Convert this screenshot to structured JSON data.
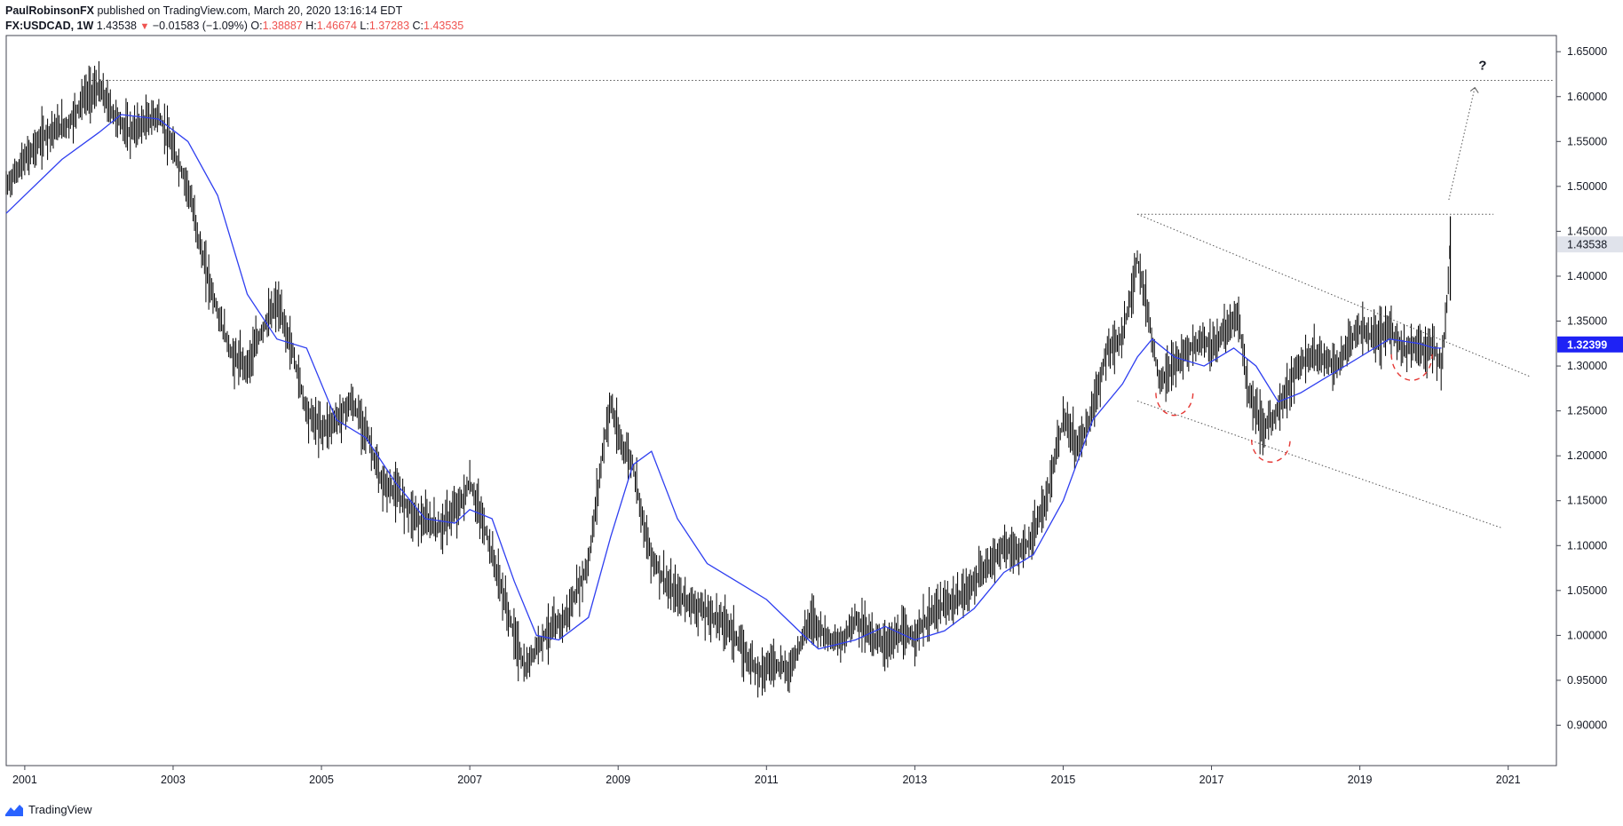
{
  "header": {
    "author": "PaulRobinsonFX",
    "published_text": "published on TradingView.com, March 20, 2020 13:16:14 EDT",
    "symbol": "FX:USDCAD, 1W",
    "last": "1.43538",
    "change_arrow": "▼",
    "change": "−0.01583 (−1.09%)",
    "o_label": "O:",
    "o_value": "1.38887",
    "h_label": "H:",
    "h_value": "1.46674",
    "l_label": "L:",
    "l_value": "1.37283",
    "c_label": "C:",
    "c_value": "1.43535"
  },
  "footer": {
    "brand": "TradingView",
    "logo_icon": "tradingview-logo-icon"
  },
  "colors": {
    "up": "#000000",
    "ma": "#2f3ff0",
    "last_badge": "#e0e3eb",
    "ma_badge": "#1e22f5",
    "red": "#e53935",
    "dotted": "#555555"
  },
  "chart_data": {
    "type": "line",
    "title": "",
    "xlabel": "",
    "ylabel": "",
    "x_ticks": [
      "2001",
      "2003",
      "2005",
      "2007",
      "2009",
      "2011",
      "2013",
      "2015",
      "2017",
      "2019",
      "2021"
    ],
    "y_ticks": [
      "0.90000",
      "0.95000",
      "1.00000",
      "1.05000",
      "1.10000",
      "1.15000",
      "1.20000",
      "1.25000",
      "1.30000",
      "1.35000",
      "1.40000",
      "1.45000",
      "1.50000",
      "1.55000",
      "1.60000",
      "1.65000"
    ],
    "xlim": [
      2000.75,
      2021.65
    ],
    "ylim": [
      0.855,
      1.668
    ],
    "grid": false,
    "price_badge": {
      "value": 1.43538,
      "label": "1.43538"
    },
    "ma_badge": {
      "value": 1.32399,
      "label": "1.32399"
    },
    "annotation_text": "?",
    "series": [
      {
        "kind": "price",
        "x": [
          2000.75,
          2001.0,
          2001.3,
          2001.6,
          2001.8,
          2002.0,
          2002.2,
          2002.4,
          2002.6,
          2002.8,
          2003.0,
          2003.2,
          2003.4,
          2003.6,
          2003.8,
          2004.0,
          2004.2,
          2004.4,
          2004.6,
          2004.8,
          2005.0,
          2005.2,
          2005.4,
          2005.6,
          2005.8,
          2006.0,
          2006.3,
          2006.6,
          2006.9,
          2007.0,
          2007.2,
          2007.4,
          2007.6,
          2007.75,
          2007.85,
          2008.0,
          2008.3,
          2008.6,
          2008.8,
          2008.9,
          2009.0,
          2009.2,
          2009.4,
          2009.5,
          2009.7,
          2009.9,
          2010.1,
          2010.3,
          2010.5,
          2010.7,
          2010.9,
          2011.1,
          2011.3,
          2011.5,
          2011.6,
          2011.8,
          2012.0,
          2012.2,
          2012.4,
          2012.6,
          2012.8,
          2013.0,
          2013.3,
          2013.6,
          2013.9,
          2014.2,
          2014.4,
          2014.6,
          2014.8,
          2015.0,
          2015.2,
          2015.4,
          2015.6,
          2015.8,
          2016.0,
          2016.1,
          2016.3,
          2016.5,
          2016.7,
          2016.9,
          2017.0,
          2017.2,
          2017.35,
          2017.5,
          2017.7,
          2017.9,
          2018.1,
          2018.3,
          2018.5,
          2018.7,
          2018.9,
          2019.0,
          2019.2,
          2019.4,
          2019.6,
          2019.8,
          2020.0,
          2020.1,
          2020.17,
          2020.22
        ],
        "y": [
          1.5,
          1.53,
          1.56,
          1.57,
          1.6,
          1.61,
          1.58,
          1.56,
          1.57,
          1.58,
          1.54,
          1.5,
          1.42,
          1.36,
          1.31,
          1.3,
          1.34,
          1.37,
          1.32,
          1.25,
          1.23,
          1.24,
          1.26,
          1.23,
          1.17,
          1.16,
          1.13,
          1.12,
          1.15,
          1.17,
          1.12,
          1.06,
          1.0,
          0.96,
          0.98,
          1.0,
          1.02,
          1.08,
          1.21,
          1.26,
          1.22,
          1.19,
          1.1,
          1.08,
          1.05,
          1.04,
          1.03,
          1.02,
          1.01,
          0.98,
          0.96,
          0.97,
          0.96,
          1.0,
          1.02,
          1.0,
          0.99,
          1.02,
          1.0,
          0.99,
          1.0,
          1.0,
          1.03,
          1.04,
          1.07,
          1.1,
          1.09,
          1.11,
          1.16,
          1.24,
          1.21,
          1.25,
          1.32,
          1.33,
          1.42,
          1.38,
          1.28,
          1.3,
          1.32,
          1.33,
          1.32,
          1.34,
          1.36,
          1.27,
          1.23,
          1.25,
          1.29,
          1.31,
          1.31,
          1.3,
          1.33,
          1.34,
          1.33,
          1.34,
          1.32,
          1.32,
          1.32,
          1.3,
          1.36,
          1.44
        ]
      },
      {
        "kind": "moving_average",
        "x": [
          2000.75,
          2001.5,
          2002.0,
          2002.3,
          2002.8,
          2003.2,
          2003.6,
          2004.0,
          2004.4,
          2004.8,
          2005.2,
          2005.6,
          2006.0,
          2006.4,
          2006.8,
          2007.0,
          2007.3,
          2007.6,
          2007.9,
          2008.2,
          2008.6,
          2008.9,
          2009.2,
          2009.45,
          2009.8,
          2010.2,
          2010.6,
          2011.0,
          2011.5,
          2011.7,
          2012.2,
          2012.6,
          2013.0,
          2013.4,
          2013.8,
          2014.2,
          2014.6,
          2015.0,
          2015.4,
          2015.8,
          2016.0,
          2016.2,
          2016.5,
          2016.9,
          2017.3,
          2017.6,
          2017.9,
          2018.2,
          2018.6,
          2019.0,
          2019.4,
          2019.8,
          2020.0,
          2020.1
        ],
        "y": [
          1.47,
          1.53,
          1.56,
          1.58,
          1.575,
          1.55,
          1.49,
          1.38,
          1.33,
          1.32,
          1.24,
          1.22,
          1.17,
          1.13,
          1.125,
          1.14,
          1.13,
          1.06,
          1.0,
          0.995,
          1.02,
          1.11,
          1.19,
          1.205,
          1.13,
          1.08,
          1.06,
          1.04,
          1.0,
          0.985,
          0.995,
          1.01,
          0.995,
          1.005,
          1.03,
          1.07,
          1.09,
          1.15,
          1.24,
          1.28,
          1.31,
          1.33,
          1.31,
          1.3,
          1.32,
          1.3,
          1.26,
          1.27,
          1.29,
          1.31,
          1.33,
          1.325,
          1.32,
          1.32
        ]
      }
    ],
    "lines": [
      {
        "style": "dotted",
        "x": [
          2001.9,
          2021.6
        ],
        "y": [
          1.618,
          1.618
        ]
      },
      {
        "style": "dotted",
        "x": [
          2016.0,
          2020.8
        ],
        "y": [
          1.469,
          1.469
        ]
      },
      {
        "style": "dotted",
        "x": [
          2016.0,
          2021.3
        ],
        "y": [
          1.469,
          1.288
        ]
      },
      {
        "style": "dotted",
        "x": [
          2016.0,
          2020.9
        ],
        "y": [
          1.261,
          1.12
        ]
      },
      {
        "style": "dotted_arrow",
        "x": [
          2020.2,
          2020.55
        ],
        "y": [
          1.485,
          1.61
        ]
      }
    ],
    "arcs": [
      {
        "cx": 2016.5,
        "cy": 1.27,
        "w": 0.5,
        "h": 0.025
      },
      {
        "cx": 2017.8,
        "cy": 1.218,
        "w": 0.52,
        "h": 0.025
      },
      {
        "cx": 2019.7,
        "cy": 1.313,
        "w": 0.55,
        "h": 0.029
      }
    ]
  }
}
